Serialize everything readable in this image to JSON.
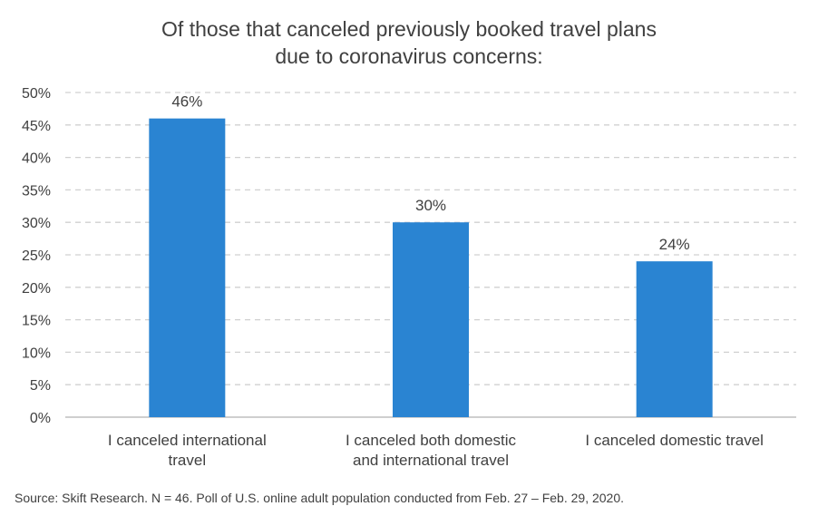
{
  "chart_data": {
    "type": "bar",
    "title": [
      "Of those that canceled previously booked travel plans",
      "due to coronavirus concerns:"
    ],
    "categories": [
      [
        "I canceled international",
        "travel"
      ],
      [
        "I canceled both domestic",
        "and international travel"
      ],
      [
        "I canceled domestic travel"
      ]
    ],
    "values": [
      46,
      30,
      24
    ],
    "data_labels": [
      "46%",
      "30%",
      "24%"
    ],
    "ylim": [
      0,
      50
    ],
    "yticks": [
      0,
      5,
      10,
      15,
      20,
      25,
      30,
      35,
      40,
      45,
      50
    ],
    "ytick_labels": [
      "0%",
      "5%",
      "10%",
      "15%",
      "20%",
      "25%",
      "30%",
      "35%",
      "40%",
      "45%",
      "50%"
    ],
    "grid": true,
    "bar_color": "#2a84d2",
    "grid_color": "#d0d0d0",
    "axis_color": "#bfbfbf"
  },
  "source": "Source: Skift Research. N = 46. Poll of U.S. online adult population conducted from Feb. 27 – Feb. 29, 2020."
}
